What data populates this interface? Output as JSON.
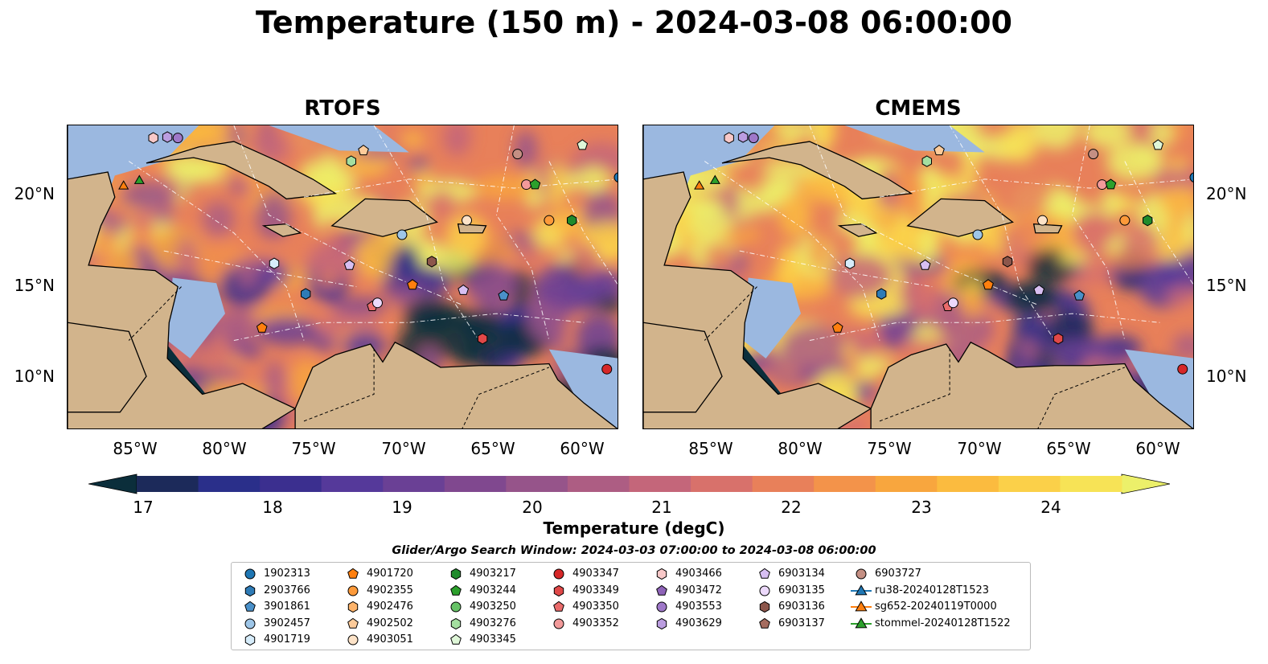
{
  "title": "Temperature (150 m) - 2024-03-08 06:00:00",
  "panels": [
    {
      "title": "RTOFS"
    },
    {
      "title": "CMEMS"
    }
  ],
  "lat_labels": [
    "20°N",
    "15°N",
    "10°N"
  ],
  "lon_labels": [
    "85°W",
    "80°W",
    "75°W",
    "70°W",
    "65°W",
    "60°W"
  ],
  "map_extent": {
    "lon": [
      -89.5,
      -58.0
    ],
    "lat": [
      7.0,
      24.0
    ]
  },
  "colorbar": {
    "label": "Temperature (degC)",
    "ticks": [
      "17",
      "18",
      "19",
      "20",
      "21",
      "22",
      "23",
      "24"
    ],
    "range": [
      17,
      24.5
    ],
    "extend": "both",
    "colors": [
      "#0b2e3b",
      "#1c2a5a",
      "#2a2f8a",
      "#3b2f8f",
      "#55399a",
      "#6a4095",
      "#80488f",
      "#96548a",
      "#ad5d83",
      "#c4667a",
      "#d8716b",
      "#e8805a",
      "#f3934a",
      "#f8a63e",
      "#fbbb3f",
      "#fbd049",
      "#f7e356",
      "#ecf06a"
    ]
  },
  "search_window": "Glider/Argo Search Window: 2024-03-03 07:00:00 to 2024-03-08 06:00:00",
  "legend": [
    {
      "label": "1902313",
      "marker": "circle",
      "color": "#1f77b4"
    },
    {
      "label": "2903766",
      "marker": "hexagon",
      "color": "#2e7bb6"
    },
    {
      "label": "3901861",
      "marker": "pentagon",
      "color": "#4a90c9"
    },
    {
      "label": "3902457",
      "marker": "circle",
      "color": "#9ec6e8"
    },
    {
      "label": "4901719",
      "marker": "hexagon",
      "color": "#d6ecfa"
    },
    {
      "label": "4901720",
      "marker": "pentagon",
      "color": "#ff7f0e"
    },
    {
      "label": "4902355",
      "marker": "circle",
      "color": "#fd9a3a"
    },
    {
      "label": "4902476",
      "marker": "hexagon",
      "color": "#fdb36a"
    },
    {
      "label": "4902502",
      "marker": "pentagon",
      "color": "#fdcb9a"
    },
    {
      "label": "4903051",
      "marker": "circle",
      "color": "#fde3c8"
    },
    {
      "label": "4903217",
      "marker": "hexagon",
      "color": "#1f8b2c"
    },
    {
      "label": "4903244",
      "marker": "pentagon",
      "color": "#2ca02c"
    },
    {
      "label": "4903250",
      "marker": "circle",
      "color": "#66c266"
    },
    {
      "label": "4903276",
      "marker": "hexagon",
      "color": "#a4dfa0"
    },
    {
      "label": "4903345",
      "marker": "pentagon",
      "color": "#dff7d8"
    },
    {
      "label": "4903347",
      "marker": "circle",
      "color": "#d62728"
    },
    {
      "label": "4903349",
      "marker": "hexagon",
      "color": "#e04848"
    },
    {
      "label": "4903350",
      "marker": "pentagon",
      "color": "#ea6b6b"
    },
    {
      "label": "4903352",
      "marker": "circle",
      "color": "#f29a9a"
    },
    {
      "label": "4903466",
      "marker": "hexagon",
      "color": "#f8c8c8"
    },
    {
      "label": "4903472",
      "marker": "pentagon",
      "color": "#8e63b8"
    },
    {
      "label": "4903553",
      "marker": "circle",
      "color": "#9f78c9"
    },
    {
      "label": "4903629",
      "marker": "hexagon",
      "color": "#bb9de0"
    },
    {
      "label": "6903134",
      "marker": "pentagon",
      "color": "#d7bff2"
    },
    {
      "label": "6903135",
      "marker": "circle",
      "color": "#ecd9fb"
    },
    {
      "label": "6903136",
      "marker": "hexagon",
      "color": "#8c564b"
    },
    {
      "label": "6903137",
      "marker": "pentagon",
      "color": "#a56c5f"
    },
    {
      "label": "6903727",
      "marker": "circle",
      "color": "#c48f83"
    },
    {
      "label": "ru38-20240128T1523",
      "marker": "triangle-line",
      "color": "#1f77b4"
    },
    {
      "label": "sg652-20240119T0000",
      "marker": "triangle-line",
      "color": "#ff7f0e"
    },
    {
      "label": "stommel-20240128T1522",
      "marker": "triangle-line",
      "color": "#2ca02c"
    }
  ],
  "observations": [
    {
      "id": "4903466",
      "lon": -84.6,
      "lat": 23.3
    },
    {
      "id": "4903553",
      "lon": -83.2,
      "lat": 23.3
    },
    {
      "id": "4903629",
      "lon": -83.8,
      "lat": 23.35
    },
    {
      "id": "4902502",
      "lon": -72.6,
      "lat": 22.6
    },
    {
      "id": "4903276",
      "lon": -73.3,
      "lat": 22.0
    },
    {
      "id": "6903727",
      "lon": -63.8,
      "lat": 22.4
    },
    {
      "id": "4903345",
      "lon": -60.1,
      "lat": 22.9
    },
    {
      "id": "4903352",
      "lon": -63.3,
      "lat": 20.7
    },
    {
      "id": "4903244",
      "lon": -62.8,
      "lat": 20.7
    },
    {
      "id": "1902313",
      "lon": -58.0,
      "lat": 21.1
    },
    {
      "id": "4903051",
      "lon": -66.7,
      "lat": 18.7
    },
    {
      "id": "4902355",
      "lon": -62.0,
      "lat": 18.7
    },
    {
      "id": "4903217",
      "lon": -60.7,
      "lat": 18.7
    },
    {
      "id": "3902457",
      "lon": -70.4,
      "lat": 17.9
    },
    {
      "id": "6903136",
      "lon": -68.7,
      "lat": 16.4
    },
    {
      "id": "4901719",
      "lon": -77.7,
      "lat": 16.3
    },
    {
      "id": "6903134",
      "lon": -73.4,
      "lat": 16.2
    },
    {
      "id": "4901720",
      "lon": -69.8,
      "lat": 15.1
    },
    {
      "id": "6903134",
      "lon": -66.9,
      "lat": 14.8
    },
    {
      "id": "2903766",
      "lon": -75.9,
      "lat": 14.6
    },
    {
      "id": "3901861",
      "lon": -64.6,
      "lat": 14.5
    },
    {
      "id": "4903350",
      "lon": -72.1,
      "lat": 13.9
    },
    {
      "id": "6903135",
      "lon": -71.8,
      "lat": 14.1
    },
    {
      "id": "4901720",
      "lon": -78.4,
      "lat": 12.7
    },
    {
      "id": "4903349",
      "lon": -65.8,
      "lat": 12.1
    },
    {
      "id": "4903347",
      "lon": -58.7,
      "lat": 10.4
    },
    {
      "id": "sg652-20240119T0000",
      "lon": -86.3,
      "lat": 20.6
    },
    {
      "id": "stommel-20240128T1522",
      "lon": -85.4,
      "lat": 20.9
    }
  ]
}
